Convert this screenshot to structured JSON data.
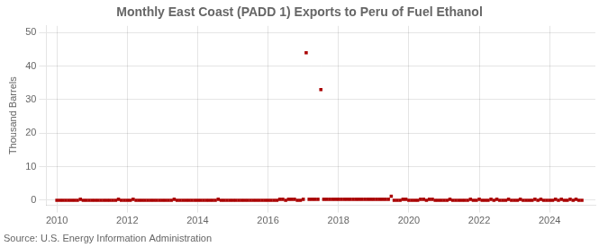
{
  "chart_data": {
    "type": "scatter",
    "title": "Monthly East Coast (PADD 1) Exports to Peru of Fuel Ethanol",
    "ylabel": "Thousand Barrels",
    "annotations": [
      "Source: U.S. Energy Information Administration"
    ],
    "color": "#aa0000",
    "marker": "square",
    "grid": true,
    "xlim": [
      2009.7,
      2025.3
    ],
    "ylim": [
      -1.5,
      52
    ],
    "xticks": [
      2010,
      2012,
      2014,
      2016,
      2018,
      2020,
      2022,
      2024
    ],
    "yticks": [
      0,
      10,
      20,
      30,
      40,
      50
    ],
    "x": [
      2010.0,
      2010.083,
      2010.167,
      2010.25,
      2010.333,
      2010.417,
      2010.5,
      2010.583,
      2010.667,
      2010.75,
      2010.833,
      2010.917,
      2011.0,
      2011.083,
      2011.167,
      2011.25,
      2011.333,
      2011.417,
      2011.5,
      2011.583,
      2011.667,
      2011.75,
      2011.833,
      2011.917,
      2012.0,
      2012.083,
      2012.167,
      2012.25,
      2012.333,
      2012.417,
      2012.5,
      2012.583,
      2012.667,
      2012.75,
      2012.833,
      2012.917,
      2013.0,
      2013.083,
      2013.167,
      2013.25,
      2013.333,
      2013.417,
      2013.5,
      2013.583,
      2013.667,
      2013.75,
      2013.833,
      2013.917,
      2014.0,
      2014.083,
      2014.167,
      2014.25,
      2014.333,
      2014.417,
      2014.5,
      2014.583,
      2014.667,
      2014.75,
      2014.833,
      2014.917,
      2015.0,
      2015.083,
      2015.167,
      2015.25,
      2015.333,
      2015.417,
      2015.5,
      2015.583,
      2015.667,
      2015.75,
      2015.833,
      2015.917,
      2016.0,
      2016.083,
      2016.167,
      2016.25,
      2016.333,
      2016.417,
      2016.5,
      2016.583,
      2016.667,
      2016.75,
      2016.833,
      2016.917,
      2017.0,
      2017.083,
      2017.167,
      2017.25,
      2017.333,
      2017.417,
      2017.5,
      2017.583,
      2017.667,
      2017.75,
      2017.833,
      2017.917,
      2018.0,
      2018.083,
      2018.167,
      2018.25,
      2018.333,
      2018.417,
      2018.5,
      2018.583,
      2018.667,
      2018.75,
      2018.833,
      2018.917,
      2019.0,
      2019.083,
      2019.167,
      2019.25,
      2019.333,
      2019.417,
      2019.5,
      2019.583,
      2019.667,
      2019.75,
      2019.833,
      2019.917,
      2020.0,
      2020.083,
      2020.167,
      2020.25,
      2020.333,
      2020.417,
      2020.5,
      2020.583,
      2020.667,
      2020.75,
      2020.833,
      2020.917,
      2021.0,
      2021.083,
      2021.167,
      2021.25,
      2021.333,
      2021.417,
      2021.5,
      2021.583,
      2021.667,
      2021.75,
      2021.833,
      2021.917,
      2022.0,
      2022.083,
      2022.167,
      2022.25,
      2022.333,
      2022.417,
      2022.5,
      2022.583,
      2022.667,
      2022.75,
      2022.833,
      2022.917,
      2023.0,
      2023.083,
      2023.167,
      2023.25,
      2023.333,
      2023.417,
      2023.5,
      2023.583,
      2023.667,
      2023.75,
      2023.833,
      2023.917,
      2024.0,
      2024.083,
      2024.167,
      2024.25,
      2024.333,
      2024.417,
      2024.5,
      2024.583,
      2024.667,
      2024.75,
      2024.833,
      2024.917
    ],
    "values": [
      0,
      0,
      0,
      0,
      0,
      0,
      0,
      0,
      0.3,
      0,
      0,
      0,
      0,
      0,
      0,
      0,
      0,
      0,
      0,
      0,
      0,
      0.3,
      0,
      0,
      0,
      0,
      0.3,
      0,
      0,
      0,
      0,
      0,
      0,
      0,
      0,
      0,
      0,
      0,
      0,
      0,
      0.3,
      0,
      0,
      0,
      0,
      0,
      0,
      0,
      0,
      0,
      0,
      0,
      0,
      0,
      0,
      0.3,
      0,
      0,
      0,
      0,
      0,
      0,
      0,
      0,
      0,
      0,
      0,
      0,
      0,
      0,
      0,
      0,
      0,
      0,
      0,
      0,
      0.3,
      0.3,
      0,
      0.3,
      0.3,
      0.3,
      0,
      0,
      0.3,
      44,
      0.3,
      0.3,
      0.3,
      0.3,
      33,
      0.3,
      0.3,
      0.3,
      0.3,
      0.3,
      0.3,
      0.3,
      0.3,
      0.3,
      0.3,
      0.3,
      0.3,
      0.3,
      0.3,
      0.3,
      0.3,
      0.3,
      0.3,
      0.3,
      0.3,
      0.3,
      0.3,
      0.3,
      1.2,
      0,
      0,
      0,
      0.3,
      0.3,
      0,
      0,
      0,
      0,
      0.3,
      0.3,
      0,
      0.3,
      0.3,
      0,
      0,
      0,
      0,
      0,
      0.3,
      0,
      0,
      0,
      0,
      0,
      0,
      0.3,
      0,
      0,
      0.3,
      0,
      0,
      0,
      0.3,
      0,
      0.3,
      0,
      0,
      0,
      0.3,
      0,
      0,
      0,
      0.3,
      0,
      0,
      0,
      0,
      0.3,
      0,
      0.3,
      0,
      0,
      0,
      0,
      0.3,
      0,
      0.3,
      0,
      0,
      0.3,
      0,
      0.3,
      0,
      0
    ]
  }
}
